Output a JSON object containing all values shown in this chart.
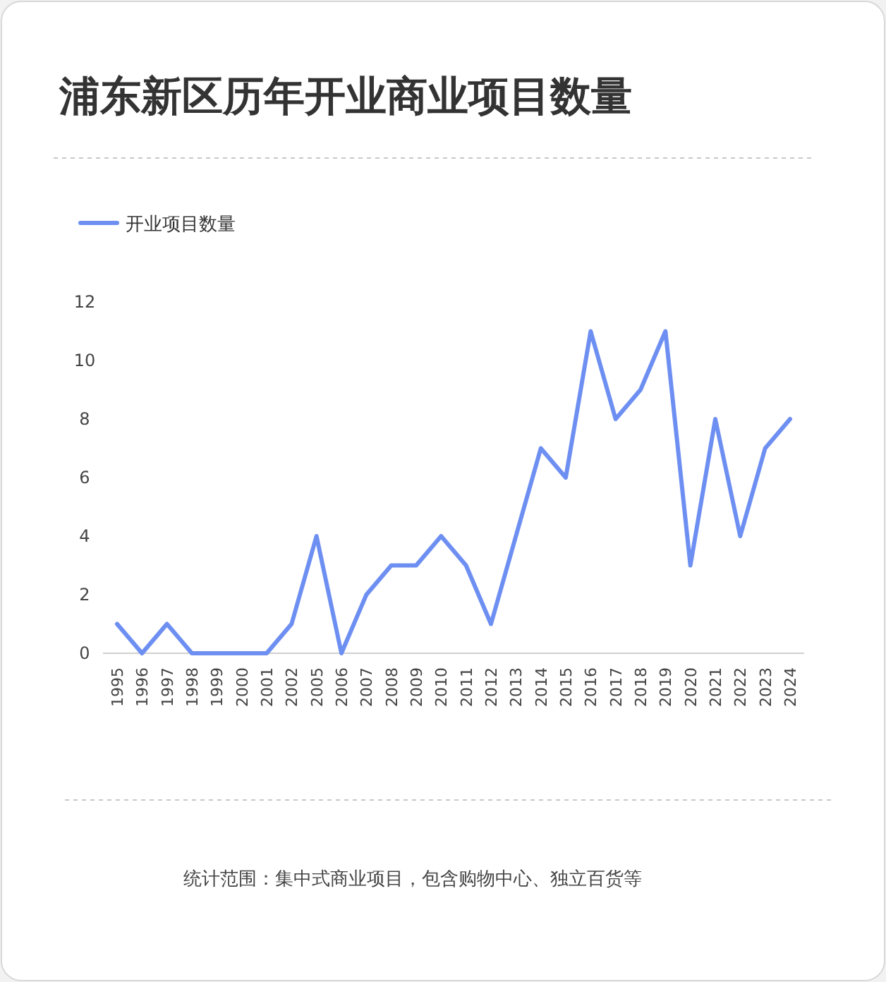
{
  "chart_data": {
    "type": "line",
    "title": "浦东新区历年开业商业项目数量",
    "categories": [
      "1995",
      "1996",
      "1997",
      "1998",
      "1999",
      "2000",
      "2001",
      "2002",
      "2005",
      "2006",
      "2007",
      "2008",
      "2009",
      "2010",
      "2011",
      "2012",
      "2013",
      "2014",
      "2015",
      "2016",
      "2017",
      "2018",
      "2019",
      "2020",
      "2021",
      "2022",
      "2023",
      "2024"
    ],
    "series": [
      {
        "name": "开业项目数量",
        "color": "#6e8ff2",
        "values": [
          1,
          0,
          1,
          0,
          0,
          0,
          0,
          1,
          4,
          0,
          2,
          3,
          3,
          4,
          3,
          1,
          4,
          7,
          6,
          11,
          8,
          9,
          11,
          3,
          8,
          4,
          7,
          8
        ]
      }
    ],
    "ylim": [
      0,
      12
    ],
    "yticks": [
      0,
      2,
      4,
      6,
      8,
      10,
      12
    ],
    "grid": false,
    "legend": "top left",
    "marker": "none",
    "line_style": "solid",
    "annotations": [
      "统计范围：集中式商业项目，包含购物中心、独立百货等"
    ]
  }
}
